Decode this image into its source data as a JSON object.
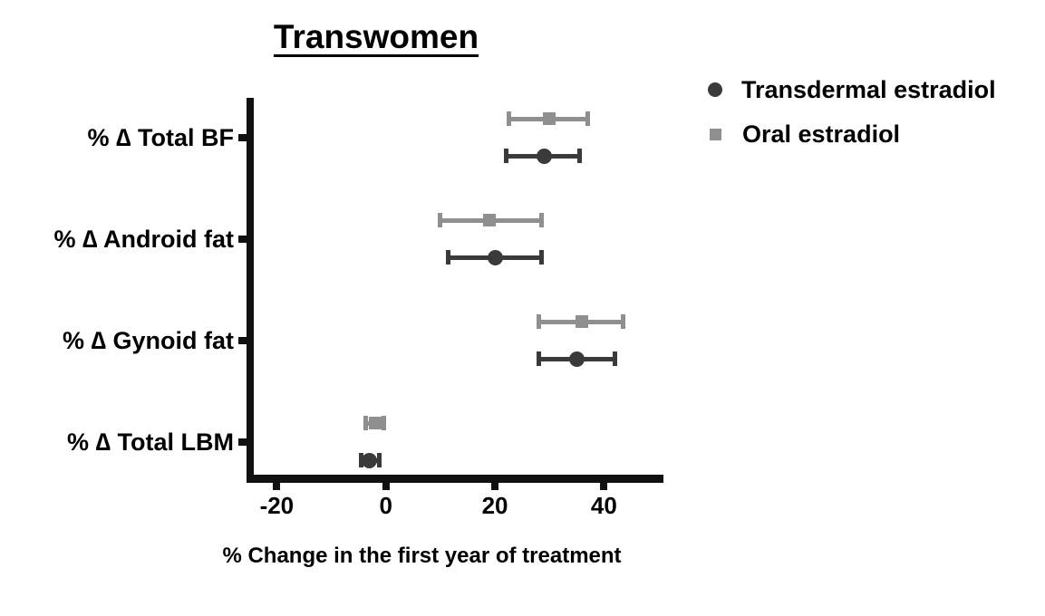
{
  "chart_data": {
    "type": "scatter",
    "variant": "horizontal-forest-dot-plot-with-error-bars",
    "title": "Transwomen",
    "xlabel": "% Change in the first year of treatment",
    "categories": [
      "% ∆ Total BF",
      "% ∆ Android fat",
      "% ∆ Gynoid fat",
      "% ∆ Total LBM"
    ],
    "x_ticks": [
      -20,
      0,
      20,
      40
    ],
    "x_tick_labels": [
      "-20",
      "0",
      "20",
      "40"
    ],
    "xlim": [
      -25,
      50.5
    ],
    "grid": false,
    "legend_position": "top-right-outside",
    "axis_color": "#111111",
    "series": [
      {
        "name": "Transdermal estradiol",
        "marker": "circle",
        "color": "#3a3a3a",
        "values": [
          29,
          20,
          35,
          -3
        ],
        "ci_low": [
          22,
          11.5,
          28,
          -4.6
        ],
        "ci_high": [
          35.5,
          28.5,
          42,
          -1.2
        ]
      },
      {
        "name": "Oral estradiol",
        "marker": "square",
        "color": "#8f8f8f",
        "values": [
          30,
          19,
          36,
          -2
        ],
        "ci_low": [
          22.5,
          10,
          28,
          -3.7
        ],
        "ci_high": [
          37,
          28.5,
          43.5,
          -0.4
        ]
      }
    ]
  }
}
